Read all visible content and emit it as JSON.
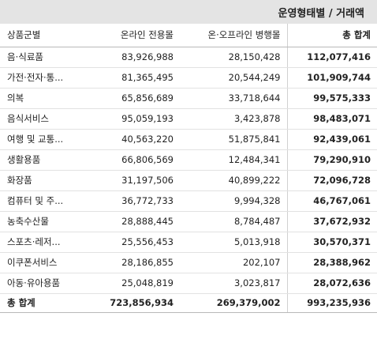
{
  "title": "운영형태별 / 거래액",
  "headers": {
    "category": "상품군별",
    "online": "온라인 전용몰",
    "onoff": "온·오프라인 병행몰",
    "total": "총 합계"
  },
  "rows": [
    {
      "category": "음·식료품",
      "online": "83,926,988",
      "onoff": "28,150,428",
      "total": "112,077,416"
    },
    {
      "category": "가전·전자·통...",
      "online": "81,365,495",
      "onoff": "20,544,249",
      "total": "101,909,744"
    },
    {
      "category": "의복",
      "online": "65,856,689",
      "onoff": "33,718,644",
      "total": "99,575,333"
    },
    {
      "category": "음식서비스",
      "online": "95,059,193",
      "onoff": "3,423,878",
      "total": "98,483,071"
    },
    {
      "category": "여행 및 교통...",
      "online": "40,563,220",
      "onoff": "51,875,841",
      "total": "92,439,061"
    },
    {
      "category": "생활용품",
      "online": "66,806,569",
      "onoff": "12,484,341",
      "total": "79,290,910"
    },
    {
      "category": "화장품",
      "online": "31,197,506",
      "onoff": "40,899,222",
      "total": "72,096,728"
    },
    {
      "category": "컴퓨터 및 주...",
      "online": "36,772,733",
      "onoff": "9,994,328",
      "total": "46,767,061"
    },
    {
      "category": "농축수산물",
      "online": "28,888,445",
      "onoff": "8,784,487",
      "total": "37,672,932"
    },
    {
      "category": "스포츠·레저...",
      "online": "25,556,453",
      "onoff": "5,013,918",
      "total": "30,570,371"
    },
    {
      "category": "이쿠폰서비스",
      "online": "28,186,855",
      "onoff": "202,107",
      "total": "28,388,962"
    },
    {
      "category": "아동·유아용품",
      "online": "25,048,819",
      "onoff": "3,023,817",
      "total": "28,072,636"
    }
  ],
  "footer": {
    "label": "총 합계",
    "online": "723,856,934",
    "onoff": "269,379,002",
    "total": "993,235,936"
  }
}
